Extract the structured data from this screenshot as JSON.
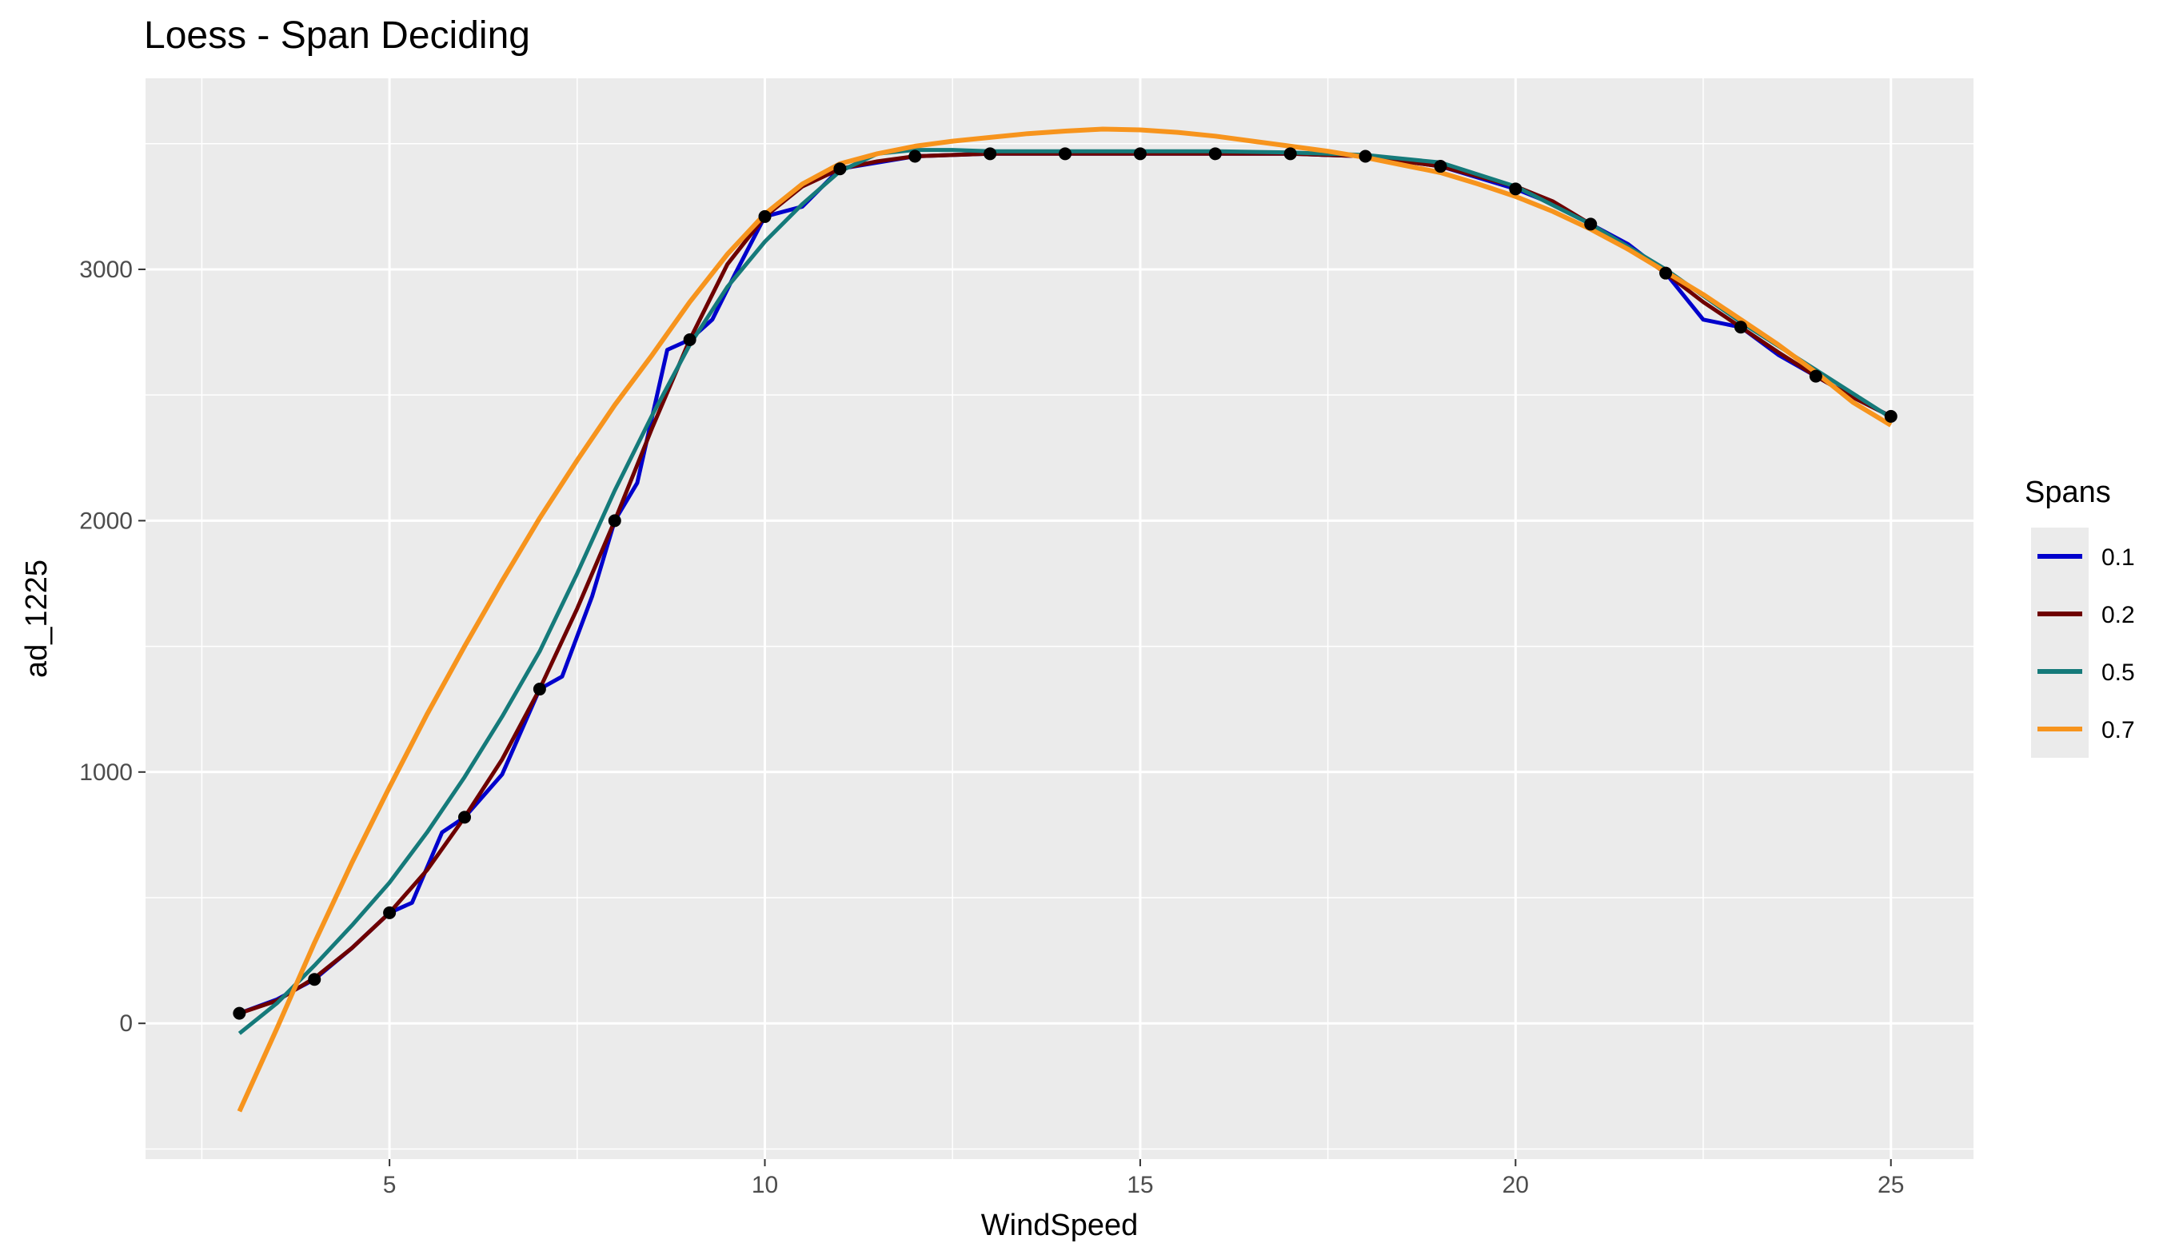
{
  "chart_data": {
    "type": "line",
    "title": "Loess - Span Deciding",
    "xlabel": "WindSpeed",
    "ylabel": "ad_1225",
    "xlim": [
      1.75,
      26.1
    ],
    "ylim": [
      -540,
      3760
    ],
    "x_ticks": [
      5,
      10,
      15,
      20,
      25
    ],
    "y_ticks": [
      0,
      1000,
      2000,
      3000
    ],
    "x_tick_labels": [
      "5",
      "10",
      "15",
      "20",
      "25"
    ],
    "y_tick_labels": [
      "0",
      "1000",
      "2000",
      "3000"
    ],
    "grid": true,
    "legend": {
      "title": "Spans",
      "position": "right",
      "entries": [
        "0.1",
        "0.2",
        "0.5",
        "0.7"
      ]
    },
    "points": {
      "x": [
        3,
        4,
        5,
        6,
        7,
        8,
        9,
        10,
        11,
        12,
        13,
        14,
        15,
        16,
        17,
        18,
        19,
        20,
        21,
        22,
        23,
        24,
        25
      ],
      "y": [
        40,
        175,
        440,
        820,
        1330,
        2000,
        2720,
        3210,
        3400,
        3450,
        3460,
        3460,
        3460,
        3460,
        3460,
        3450,
        3410,
        3320,
        3180,
        2985,
        2770,
        2575,
        2415
      ]
    },
    "series": [
      {
        "name": "0.1",
        "color": "#0000CC",
        "x": [
          3,
          3.5,
          4,
          4.5,
          5,
          5.3,
          5.7,
          6,
          6.5,
          7,
          7.3,
          7.7,
          8,
          8.3,
          8.7,
          9,
          9.3,
          9.6,
          10,
          10.5,
          11,
          12,
          13,
          14,
          15,
          16,
          17,
          18,
          19,
          20,
          20.5,
          21,
          21.5,
          22,
          22.5,
          23,
          23.5,
          24,
          24.5,
          25
        ],
        "y": [
          40,
          95,
          175,
          300,
          440,
          480,
          760,
          820,
          990,
          1330,
          1380,
          1700,
          2000,
          2150,
          2680,
          2720,
          2800,
          2980,
          3210,
          3250,
          3400,
          3450,
          3460,
          3460,
          3460,
          3460,
          3460,
          3450,
          3410,
          3320,
          3260,
          3180,
          3100,
          2985,
          2800,
          2770,
          2660,
          2575,
          2490,
          2415
        ]
      },
      {
        "name": "0.2",
        "color": "#6E0000",
        "x": [
          3,
          3.5,
          4,
          4.5,
          5,
          5.5,
          6,
          6.5,
          7,
          7.5,
          8,
          8.5,
          9,
          9.5,
          10,
          10.5,
          11,
          11.5,
          12,
          13,
          14,
          15,
          16,
          17,
          18,
          19,
          20,
          20.5,
          21,
          21.5,
          22,
          22.5,
          23,
          23.5,
          24,
          24.5,
          25
        ],
        "y": [
          40,
          90,
          180,
          300,
          440,
          610,
          820,
          1050,
          1330,
          1650,
          2000,
          2370,
          2720,
          3020,
          3210,
          3330,
          3400,
          3430,
          3450,
          3460,
          3460,
          3460,
          3460,
          3460,
          3450,
          3410,
          3330,
          3270,
          3180,
          3090,
          2985,
          2870,
          2770,
          2670,
          2575,
          2490,
          2415
        ]
      },
      {
        "name": "0.5",
        "color": "#157A7A",
        "x": [
          3,
          3.5,
          4,
          4.5,
          5,
          5.5,
          6,
          6.5,
          7,
          7.5,
          8,
          8.5,
          9,
          9.5,
          10,
          10.5,
          11,
          11.5,
          12,
          12.5,
          13,
          14,
          15,
          16,
          17,
          18,
          19,
          20,
          21,
          22,
          23,
          24,
          25
        ],
        "y": [
          -40,
          80,
          230,
          390,
          560,
          760,
          980,
          1220,
          1480,
          1790,
          2120,
          2420,
          2700,
          2930,
          3110,
          3260,
          3390,
          3460,
          3475,
          3475,
          3470,
          3470,
          3470,
          3470,
          3465,
          3455,
          3425,
          3330,
          3180,
          3000,
          2790,
          2600,
          2410
        ]
      },
      {
        "name": "0.7",
        "color": "#F7941D",
        "x": [
          3,
          3.5,
          4,
          4.5,
          5,
          5.5,
          6,
          6.5,
          7,
          7.5,
          8,
          8.5,
          9,
          9.5,
          10,
          10.5,
          11,
          11.5,
          12,
          12.5,
          13,
          13.5,
          14,
          14.5,
          15,
          15.5,
          16,
          16.5,
          17,
          17.5,
          18,
          18.5,
          19,
          19.5,
          20,
          20.5,
          21,
          21.5,
          22,
          22.5,
          23,
          23.5,
          24,
          24.5,
          25
        ],
        "y": [
          -350,
          -20,
          320,
          640,
          940,
          1230,
          1500,
          1760,
          2010,
          2240,
          2460,
          2660,
          2870,
          3060,
          3220,
          3340,
          3420,
          3460,
          3490,
          3510,
          3525,
          3540,
          3550,
          3558,
          3555,
          3545,
          3530,
          3510,
          3490,
          3470,
          3445,
          3415,
          3385,
          3340,
          3290,
          3230,
          3160,
          3080,
          2990,
          2900,
          2800,
          2700,
          2590,
          2470,
          2380
        ]
      }
    ]
  }
}
